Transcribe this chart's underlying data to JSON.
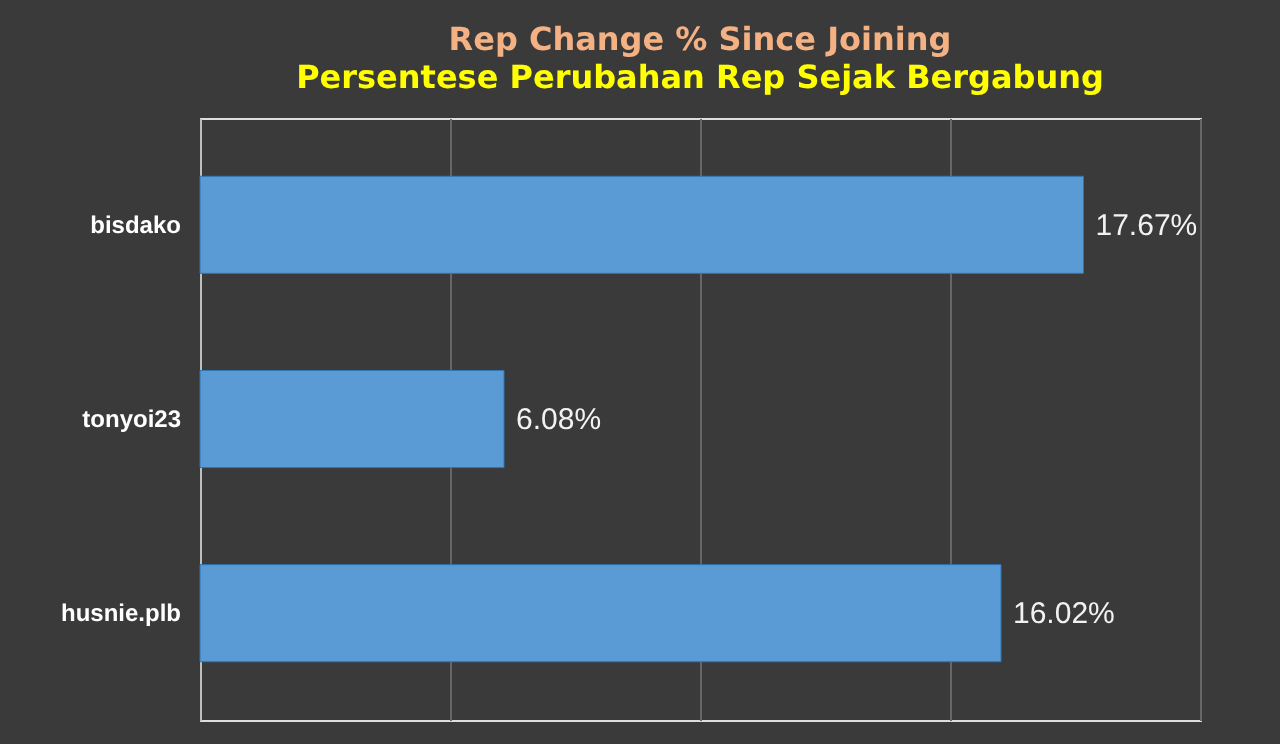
{
  "chart_data": {
    "type": "bar",
    "orientation": "horizontal",
    "title": "Rep Change % Since Joining",
    "subtitle": "Persentese Perubahan Rep Sejak Bergabung",
    "categories": [
      "bisdako",
      "tonyoi23",
      "husnie.plb"
    ],
    "values": [
      17.67,
      6.08,
      16.02
    ],
    "value_labels": [
      "17.67%",
      "6.08%",
      "16.02%"
    ],
    "color": "#5b9bd5",
    "xlim": [
      0,
      20
    ],
    "xticks": [
      {
        "value": 0,
        "label": null
      },
      {
        "value": 5,
        "label": null
      },
      {
        "value": 10,
        "label": null
      },
      {
        "value": 15,
        "label": null
      },
      {
        "value": 20,
        "label": null
      }
    ],
    "grid": "x",
    "tick_labels": "y"
  }
}
